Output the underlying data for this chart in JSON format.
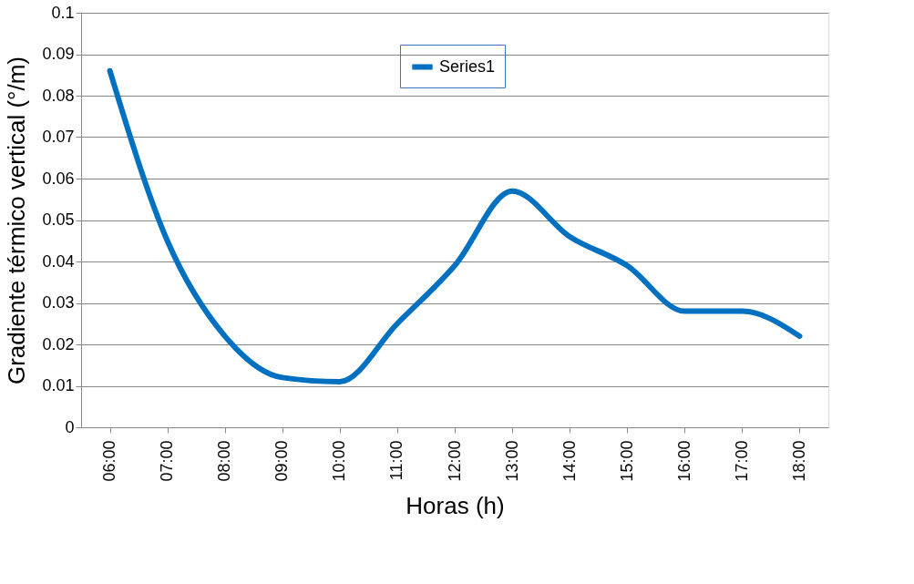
{
  "chart_data": {
    "type": "line",
    "xlabel": "Horas (h)",
    "ylabel": "Gradiente térmico vertical (°/m)",
    "categories": [
      "06:00",
      "07:00",
      "08:00",
      "09:00",
      "10:00",
      "11:00",
      "12:00",
      "13:00",
      "14:00",
      "15:00",
      "16:00",
      "17:00",
      "18:00"
    ],
    "series": [
      {
        "name": "Series1",
        "color": "#0070c0",
        "values": [
          0.086,
          0.045,
          0.022,
          0.012,
          0.011,
          0.025,
          0.039,
          0.057,
          0.046,
          0.039,
          0.028,
          0.028,
          0.022
        ]
      }
    ],
    "ylim": [
      0,
      0.1
    ],
    "yticks": [
      0,
      0.01,
      0.02,
      0.03,
      0.04,
      0.05,
      0.06,
      0.07,
      0.08,
      0.09,
      0.1
    ],
    "grid": "y",
    "legend": "top",
    "marker": "none",
    "line_style": "solid"
  }
}
